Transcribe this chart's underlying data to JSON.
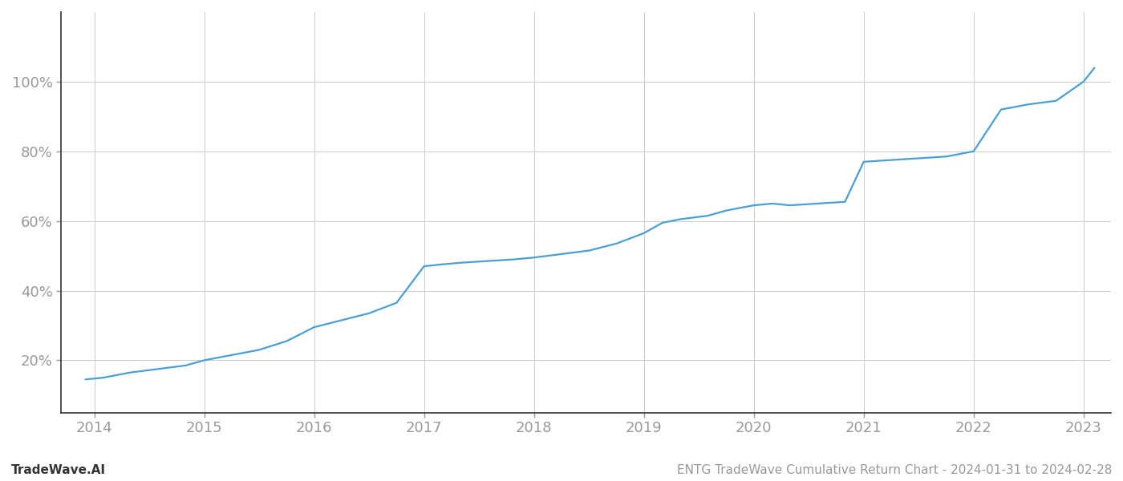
{
  "title": "ENTG TradeWave Cumulative Return Chart - 2024-01-31 to 2024-02-28",
  "watermark": "TradeWave.AI",
  "line_color": "#4a9fd4",
  "background_color": "#ffffff",
  "grid_color": "#cccccc",
  "x_years": [
    2014,
    2015,
    2016,
    2017,
    2018,
    2019,
    2020,
    2021,
    2022,
    2023
  ],
  "x_data": [
    2013.92,
    2014.08,
    2014.33,
    2014.58,
    2014.83,
    2015.0,
    2015.25,
    2015.5,
    2015.75,
    2016.0,
    2016.25,
    2016.5,
    2016.75,
    2017.0,
    2017.15,
    2017.33,
    2017.58,
    2017.83,
    2018.0,
    2018.25,
    2018.5,
    2018.75,
    2019.0,
    2019.17,
    2019.33,
    2019.58,
    2019.75,
    2020.0,
    2020.17,
    2020.33,
    2020.58,
    2020.83,
    2021.0,
    2021.25,
    2021.5,
    2021.75,
    2022.0,
    2022.25,
    2022.5,
    2022.75,
    2023.0,
    2023.1
  ],
  "y_data": [
    14.5,
    15.0,
    16.5,
    17.5,
    18.5,
    20.0,
    21.5,
    23.0,
    25.5,
    29.5,
    31.5,
    33.5,
    36.5,
    47.0,
    47.5,
    48.0,
    48.5,
    49.0,
    49.5,
    50.5,
    51.5,
    53.5,
    56.5,
    59.5,
    60.5,
    61.5,
    63.0,
    64.5,
    65.0,
    64.5,
    65.0,
    65.5,
    77.0,
    77.5,
    78.0,
    78.5,
    80.0,
    92.0,
    93.5,
    94.5,
    100.0,
    104.0
  ],
  "yticks": [
    20,
    40,
    60,
    80,
    100
  ],
  "ylim": [
    5,
    120
  ],
  "xlim": [
    2013.7,
    2023.25
  ],
  "line_width": 1.6,
  "title_fontsize": 11,
  "watermark_fontsize": 11,
  "tick_fontsize": 13,
  "tick_color": "#999999",
  "spine_color": "#333333",
  "axis_color": "#555555"
}
